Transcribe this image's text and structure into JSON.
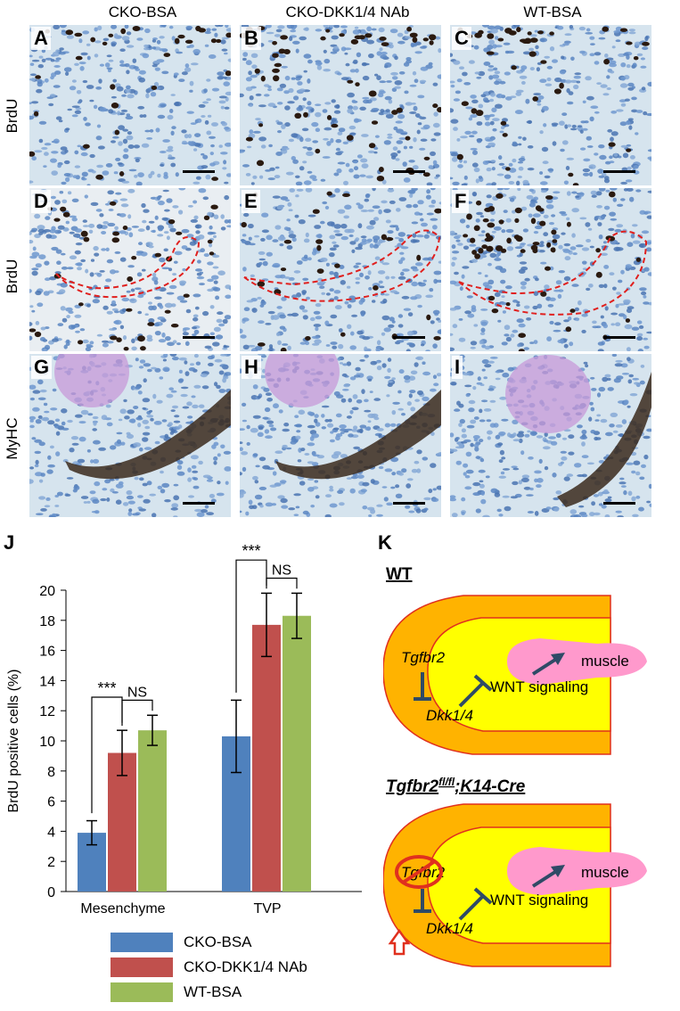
{
  "columns": [
    "CKO-BSA",
    "CKO-DKK1/4 NAb",
    "WT-BSA"
  ],
  "rows": [
    "BrdU",
    "BrdU",
    "MyHC"
  ],
  "panel_letters": [
    "A",
    "B",
    "C",
    "D",
    "E",
    "F",
    "G",
    "H",
    "I"
  ],
  "chart_label": "J",
  "diagram_label": "K",
  "chart_data": {
    "type": "bar",
    "categories": [
      "Mesenchyme",
      "TVP"
    ],
    "ylabel": "BrdU positive cells (%)",
    "xlabel": "",
    "ylim": [
      0,
      20
    ],
    "yticks": [
      0,
      2,
      4,
      6,
      8,
      10,
      12,
      14,
      16,
      18,
      20
    ],
    "series": [
      {
        "name": "CKO-BSA",
        "values": [
          3.9,
          10.3
        ],
        "errors": [
          0.8,
          2.4
        ],
        "color": "#4f81bd"
      },
      {
        "name": "CKO-DKK1/4 NAb",
        "values": [
          9.2,
          17.7
        ],
        "errors": [
          1.5,
          2.1
        ],
        "color": "#c0504d"
      },
      {
        "name": "WT-BSA",
        "values": [
          10.7,
          18.3
        ],
        "errors": [
          1.0,
          1.5
        ],
        "color": "#9bbb59"
      }
    ],
    "annotations": [
      "***",
      "NS",
      "***",
      "NS"
    ],
    "legend_position": "bottom"
  },
  "diagram": {
    "wt_title": "WT",
    "cko_title_main": "Tgfbr2",
    "cko_title_sup": "fl/fl",
    "cko_title_rest": ";K14-Cre",
    "gene1": "Tgfbr2",
    "gene2": "Dkk1/4",
    "pathway": "WNT signaling",
    "tissue": "muscle",
    "colors": {
      "epithelium": "#ffb300",
      "mesenchyme": "#ffff00",
      "muscle": "#ff99cc",
      "arrow": "#2f4a66",
      "outline": "#e0301e"
    }
  }
}
